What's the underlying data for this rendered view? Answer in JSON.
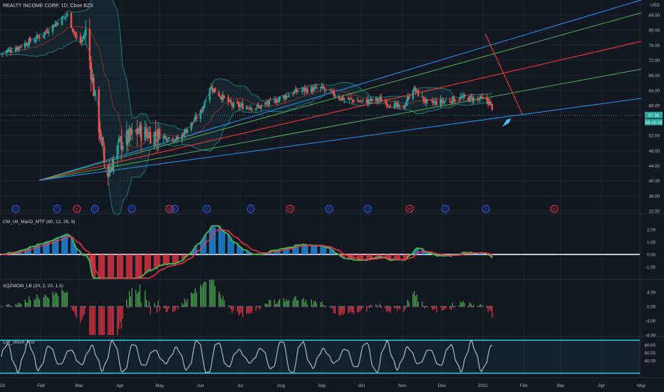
{
  "symbol": {
    "title": "REALTY INCOME CORP, 1D, Cboe BZX",
    "currency": "USD",
    "price_label": "57.38",
    "countdown_label": "06:15:18"
  },
  "colors": {
    "background": "#131722",
    "grid": "#1e222d",
    "up": "#26a69a",
    "down": "#ef5350",
    "fan_blue": "#2196f3",
    "fan_green": "#4caf50",
    "fan_red": "#f44336",
    "macd_hist_up": "#2196f3",
    "macd_hist_down": "#f23645",
    "sqz_up": "#4caf50",
    "sqz_down": "#f23645",
    "cyan_band": "#22d3e6"
  },
  "price_axis": {
    "ticks": [
      "USD",
      "84.00",
      "80.00",
      "76.00",
      "72.00",
      "68.00",
      "64.00",
      "60.00",
      "56.00",
      "52.00",
      "48.00",
      "44.00",
      "40.00",
      "36.00",
      "32.00"
    ]
  },
  "events": {
    "labels": [
      "D",
      "D",
      "E",
      "D",
      "D",
      "E",
      "D",
      "D",
      "D",
      "E",
      "D",
      "D",
      "E",
      "D",
      "D",
      "E"
    ]
  },
  "macd_panel": {
    "title": "CM_Ult_MacD_MTF (60, 12, 26, 9)",
    "ticks": [
      "2.00",
      "1.00",
      "0.00",
      "-1.00"
    ]
  },
  "sqz_panel": {
    "title": "SQZMOM_LB (20, 2, 20, 1.5)",
    "ticks": [
      "4.00",
      "0.00",
      "-4.00",
      "-8.00"
    ]
  },
  "stoch_panel": {
    "title": "CM_Stoch_RSI",
    "ticks": [
      "80.00",
      "60.00",
      "40.00"
    ]
  },
  "time_axis": {
    "labels": [
      "2020",
      "Feb",
      "Mar",
      "Apr",
      "May",
      "Jun",
      "Jul",
      "Aug",
      "Sep",
      "Oct",
      "Nov",
      "Dec",
      "2021",
      "Feb",
      "Mar",
      "Apr",
      "May"
    ]
  },
  "chart_data": {
    "type": "candlestick",
    "title": "REALTY INCOME CORP, 1D, Cboe BZX",
    "ylim": [
      32,
      88
    ],
    "x_range": [
      "2020-01-01",
      "2021-05-01"
    ],
    "close_approx": [
      [
        "2020-01-02",
        73.8
      ],
      [
        "2020-01-15",
        75.5
      ],
      [
        "2020-02-01",
        78.5
      ],
      [
        "2020-02-15",
        82.5
      ],
      [
        "2020-02-21",
        84.0
      ],
      [
        "2020-03-01",
        76.0
      ],
      [
        "2020-03-06",
        79.5
      ],
      [
        "2020-03-12",
        64.0
      ],
      [
        "2020-03-20",
        45.0
      ],
      [
        "2020-03-23",
        42.0
      ],
      [
        "2020-04-01",
        50.0
      ],
      [
        "2020-04-15",
        53.0
      ],
      [
        "2020-05-01",
        52.0
      ],
      [
        "2020-05-15",
        51.0
      ],
      [
        "2020-06-01",
        58.0
      ],
      [
        "2020-06-08",
        65.0
      ],
      [
        "2020-06-25",
        60.0
      ],
      [
        "2020-07-15",
        59.5
      ],
      [
        "2020-08-01",
        62.0
      ],
      [
        "2020-08-15",
        64.0
      ],
      [
        "2020-09-01",
        64.5
      ],
      [
        "2020-09-15",
        62.0
      ],
      [
        "2020-10-01",
        61.0
      ],
      [
        "2020-10-15",
        61.5
      ],
      [
        "2020-11-01",
        59.0
      ],
      [
        "2020-11-09",
        64.5
      ],
      [
        "2020-11-20",
        60.5
      ],
      [
        "2020-12-01",
        61.0
      ],
      [
        "2020-12-15",
        62.0
      ],
      [
        "2021-01-04",
        61.5
      ],
      [
        "2021-01-08",
        59.5
      ]
    ],
    "last_price": 57.38,
    "drawings": "Gann-style fan of trend lines from the March 2020 low; Bollinger bands around price"
  }
}
